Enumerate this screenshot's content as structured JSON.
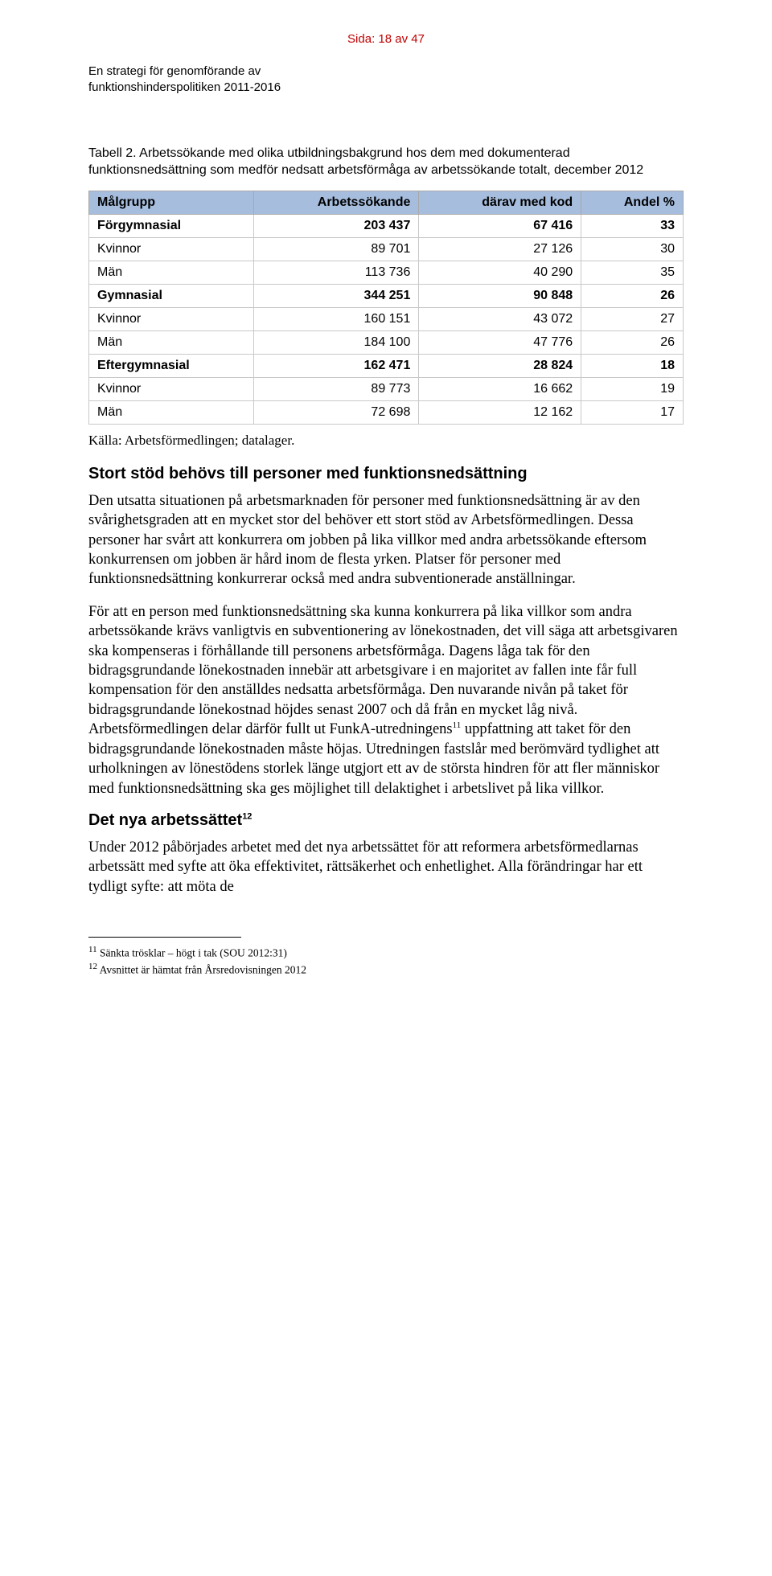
{
  "header": {
    "page_indicator": "Sida: 18 av 47",
    "doc_title_line1": "En strategi för genomförande av",
    "doc_title_line2": "funktionshinderspolitiken 2011-2016"
  },
  "table": {
    "caption": "Tabell 2. Arbetssökande med olika utbildningsbakgrund hos dem med dokumenterad funktionsnedsättning som medför nedsatt arbetsförmåga av arbetssökande totalt, december 2012",
    "columns": [
      "Målgrupp",
      "Arbetssökande",
      "därav med kod",
      "Andel %"
    ],
    "col_align": [
      "left",
      "right",
      "right",
      "right"
    ],
    "rows": [
      {
        "bold": true,
        "cells": [
          "Förgymnasial",
          "203 437",
          "67 416",
          "33"
        ]
      },
      {
        "bold": false,
        "cells": [
          "Kvinnor",
          "89 701",
          "27 126",
          "30"
        ]
      },
      {
        "bold": false,
        "cells": [
          "Män",
          "113 736",
          "40 290",
          "35"
        ]
      },
      {
        "bold": true,
        "cells": [
          "Gymnasial",
          "344 251",
          "90 848",
          "26"
        ]
      },
      {
        "bold": false,
        "cells": [
          "Kvinnor",
          "160 151",
          "43 072",
          "27"
        ]
      },
      {
        "bold": false,
        "cells": [
          "Män",
          "184 100",
          "47 776",
          "26"
        ]
      },
      {
        "bold": true,
        "cells": [
          "Eftergymnasial",
          "162 471",
          "28 824",
          "18"
        ]
      },
      {
        "bold": false,
        "cells": [
          "Kvinnor",
          "89 773",
          "16 662",
          "19"
        ]
      },
      {
        "bold": false,
        "cells": [
          "Män",
          "72 698",
          "12 162",
          "17"
        ]
      }
    ],
    "header_bg": "#a6bdde",
    "border_color": "#c8c8c8"
  },
  "source_line": "Källa: Arbetsförmedlingen; datalager.",
  "section1": {
    "heading": "Stort stöd behövs till personer med funktionsnedsättning",
    "p1": "Den utsatta situationen på arbetsmarknaden för personer med funktionsnedsättning är av den svårighetsgraden att en mycket stor del behöver ett stort stöd av Arbetsförmedlingen. Dessa personer har svårt att konkurrera om jobben på lika villkor med andra arbetssökande eftersom konkurrensen om jobben är hård inom de flesta yrken. Platser för personer med funktionsnedsättning konkurrerar också med andra subventionerade anställningar.",
    "p2a": "För att en person med funktionsnedsättning ska kunna konkurrera på lika villkor som andra arbetssökande krävs vanligtvis en subventionering av lönekostnaden, det vill säga att arbetsgivaren ska kompenseras i förhållande till personens arbetsförmåga. Dagens låga tak för den bidragsgrundande lönekostnaden innebär att arbetsgivare i en majoritet av fallen inte får full kompensation för den anställdes nedsatta arbetsförmåga. Den nuvarande nivån på taket för bidragsgrundande lönekostnad höjdes senast 2007 och då från en mycket låg nivå. Arbetsförmedlingen delar därför fullt ut FunkA-utredningens",
    "p2_fn": "11",
    "p2b": " uppfattning att taket för den bidragsgrundande lönekostnaden måste höjas. Utredningen fastslår med berömvärd tydlighet att urholkningen av lönestödens storlek länge utgjort ett av de största hindren för att fler människor med funktionsnedsättning ska ges möjlighet till delaktighet i arbetslivet på lika villkor."
  },
  "section2": {
    "heading_text": "Det nya arbetssättet",
    "heading_fn": "12",
    "p1": "Under 2012 påbörjades arbetet med det nya arbetssättet för att reformera arbetsförmedlarnas arbetssätt med syfte att öka effektivitet, rättsäkerhet och enhetlighet. Alla förändringar har ett tydligt syfte: att möta de"
  },
  "footnotes": {
    "fn11_num": "11",
    "fn11_text": " Sänkta trösklar – högt i tak (SOU 2012:31)",
    "fn12_num": "12",
    "fn12_text": " Avsnittet är hämtat från Årsredovisningen 2012"
  }
}
